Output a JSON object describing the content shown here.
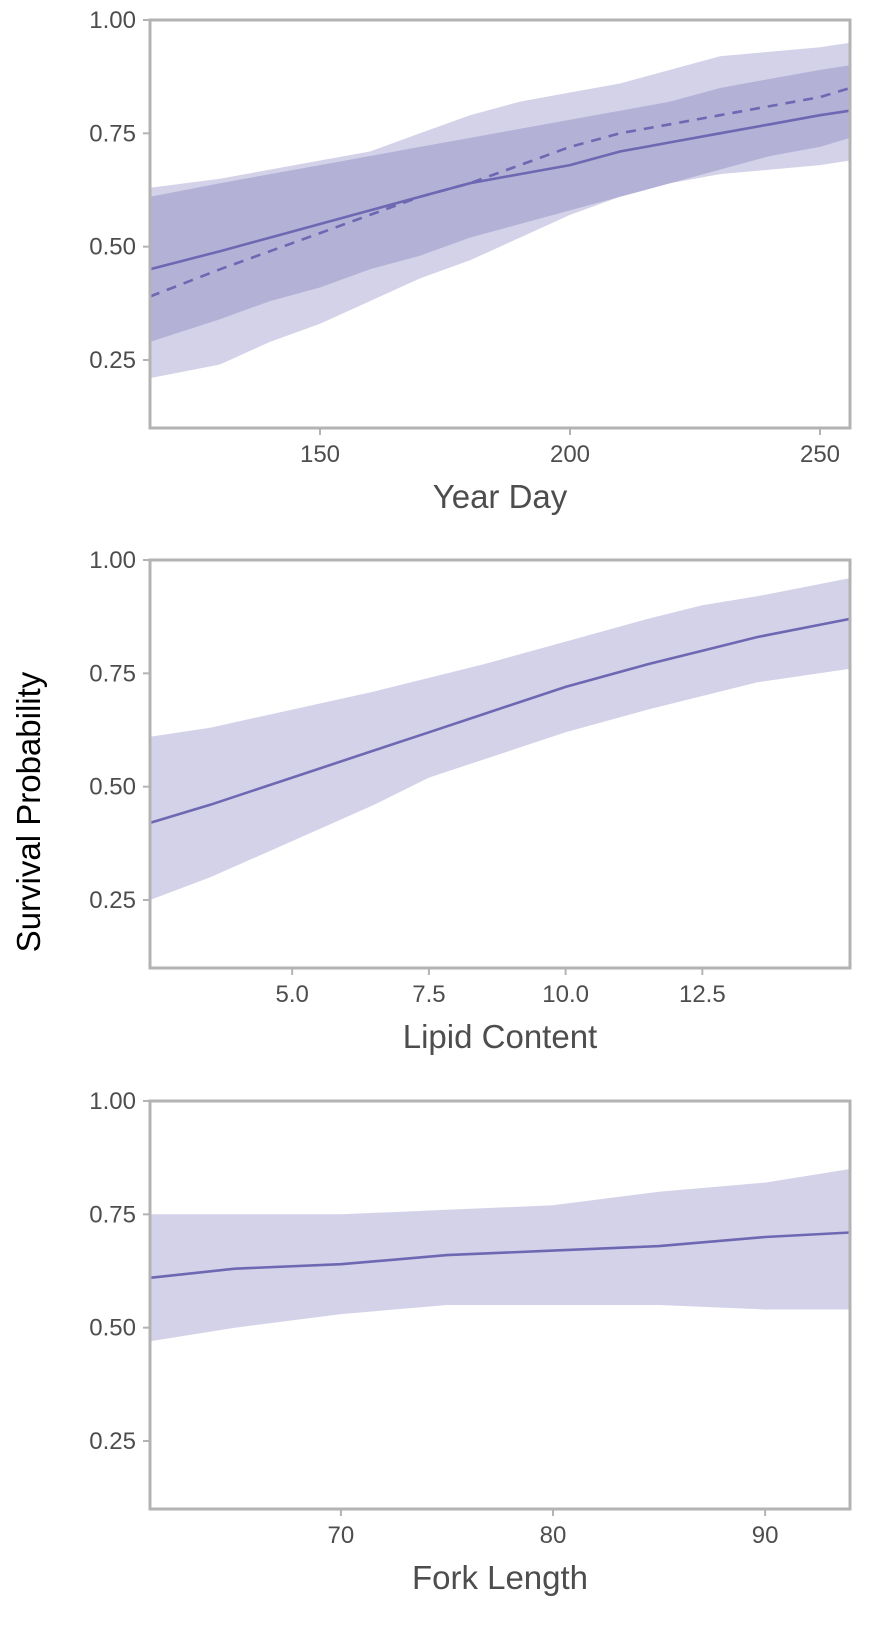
{
  "ylabel": "Survival Probability",
  "colors": {
    "outer_band": "#d3d2e8",
    "inner_band": "#b4b1d7",
    "line": "#6e68b3",
    "frame": "#b3b3b3",
    "tick_text": "#4d4d4d"
  },
  "chart_data": [
    {
      "type": "line",
      "xlabel": "Year Day",
      "ylabel": "Survival Probability",
      "xlim": [
        116,
        256
      ],
      "ylim": [
        0.1,
        1.0
      ],
      "xticks": [
        150,
        200,
        250
      ],
      "xtick_labels": [
        "150",
        "200",
        "250"
      ],
      "yticks": [
        0.25,
        0.5,
        0.75,
        1.0
      ],
      "ytick_labels": [
        "0.25",
        "0.50",
        "0.75",
        "1.00"
      ],
      "grid": false,
      "x": [
        116,
        130,
        140,
        150,
        160,
        170,
        180,
        190,
        200,
        210,
        220,
        230,
        240,
        250,
        256
      ],
      "series": [
        {
          "kind": "band",
          "role": "outer",
          "lower": [
            0.21,
            0.24,
            0.29,
            0.33,
            0.38,
            0.43,
            0.47,
            0.52,
            0.57,
            0.61,
            0.64,
            0.66,
            0.67,
            0.68,
            0.69
          ],
          "upper": [
            0.63,
            0.65,
            0.67,
            0.69,
            0.71,
            0.75,
            0.79,
            0.82,
            0.84,
            0.86,
            0.89,
            0.92,
            0.93,
            0.94,
            0.95
          ]
        },
        {
          "kind": "band",
          "role": "inner",
          "lower": [
            0.29,
            0.34,
            0.38,
            0.41,
            0.45,
            0.48,
            0.52,
            0.55,
            0.58,
            0.61,
            0.64,
            0.67,
            0.7,
            0.72,
            0.74
          ],
          "upper": [
            0.61,
            0.64,
            0.66,
            0.68,
            0.7,
            0.72,
            0.74,
            0.76,
            0.78,
            0.8,
            0.82,
            0.85,
            0.87,
            0.89,
            0.9
          ]
        },
        {
          "kind": "line",
          "style": "solid",
          "values": [
            0.45,
            0.49,
            0.52,
            0.55,
            0.58,
            0.61,
            0.64,
            0.66,
            0.68,
            0.71,
            0.73,
            0.75,
            0.77,
            0.79,
            0.8
          ]
        },
        {
          "kind": "line",
          "style": "dashed",
          "values": [
            0.39,
            0.45,
            0.49,
            0.53,
            0.57,
            0.61,
            0.64,
            0.68,
            0.72,
            0.75,
            0.77,
            0.79,
            0.81,
            0.83,
            0.85
          ]
        }
      ]
    },
    {
      "type": "line",
      "xlabel": "Lipid Content",
      "ylabel": "Survival Probability",
      "xlim": [
        2.4,
        15.2
      ],
      "ylim": [
        0.1,
        1.0
      ],
      "xticks": [
        5.0,
        7.5,
        10.0,
        12.5
      ],
      "xtick_labels": [
        "5.0",
        "7.5",
        "10.0",
        "12.5"
      ],
      "yticks": [
        0.25,
        0.5,
        0.75,
        1.0
      ],
      "ytick_labels": [
        "0.25",
        "0.50",
        "0.75",
        "1.00"
      ],
      "grid": false,
      "x": [
        2.4,
        3.5,
        5.0,
        6.5,
        7.5,
        8.5,
        10.0,
        11.5,
        12.5,
        13.5,
        15.2
      ],
      "series": [
        {
          "kind": "band",
          "role": "outer",
          "lower": [
            0.25,
            0.3,
            0.38,
            0.46,
            0.52,
            0.56,
            0.62,
            0.67,
            0.7,
            0.73,
            0.76
          ],
          "upper": [
            0.61,
            0.63,
            0.67,
            0.71,
            0.74,
            0.77,
            0.82,
            0.87,
            0.9,
            0.92,
            0.96
          ]
        },
        {
          "kind": "line",
          "style": "solid",
          "values": [
            0.42,
            0.46,
            0.52,
            0.58,
            0.62,
            0.66,
            0.72,
            0.77,
            0.8,
            0.83,
            0.87
          ]
        }
      ]
    },
    {
      "type": "line",
      "xlabel": "Fork Length",
      "ylabel": "Survival Probability",
      "xlim": [
        61,
        94
      ],
      "ylim": [
        0.1,
        1.0
      ],
      "xticks": [
        70,
        80,
        90
      ],
      "xtick_labels": [
        "70",
        "80",
        "90"
      ],
      "yticks": [
        0.25,
        0.5,
        0.75,
        1.0
      ],
      "ytick_labels": [
        "0.25",
        "0.50",
        "0.75",
        "1.00"
      ],
      "grid": false,
      "x": [
        61,
        65,
        70,
        75,
        80,
        85,
        90,
        94
      ],
      "series": [
        {
          "kind": "band",
          "role": "outer",
          "lower": [
            0.47,
            0.5,
            0.53,
            0.55,
            0.55,
            0.55,
            0.54,
            0.54
          ],
          "upper": [
            0.75,
            0.75,
            0.75,
            0.76,
            0.77,
            0.8,
            0.82,
            0.85
          ]
        },
        {
          "kind": "line",
          "style": "solid",
          "values": [
            0.61,
            0.63,
            0.64,
            0.66,
            0.67,
            0.68,
            0.7,
            0.71
          ]
        }
      ]
    }
  ]
}
